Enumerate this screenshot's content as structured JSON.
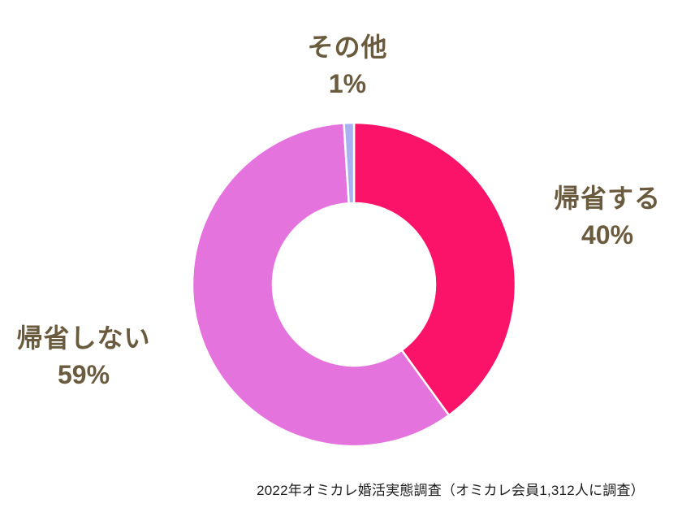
{
  "chart_data": {
    "type": "pie",
    "variant": "donut",
    "direction": "clockwise",
    "start_angle_deg": 0,
    "inner_radius_ratio": 0.5,
    "categories": [
      "帰省する",
      "帰省しない",
      "その他"
    ],
    "values": [
      40,
      59,
      1
    ],
    "unit": "%",
    "colors": [
      "#FA1369",
      "#E473DE",
      "#AAB1F0"
    ],
    "slice_border_color": "#FFFFFF",
    "labels": [
      {
        "name": "帰省する",
        "percent": "40%"
      },
      {
        "name": "帰省しない",
        "percent": "59%"
      },
      {
        "name": "その他",
        "percent": "1%"
      }
    ],
    "label_color": "#6B5B3E",
    "legend": "none",
    "title": ""
  },
  "caption": "2022年オミカレ婚活実態調査（オミカレ会員1,312人に調査）"
}
